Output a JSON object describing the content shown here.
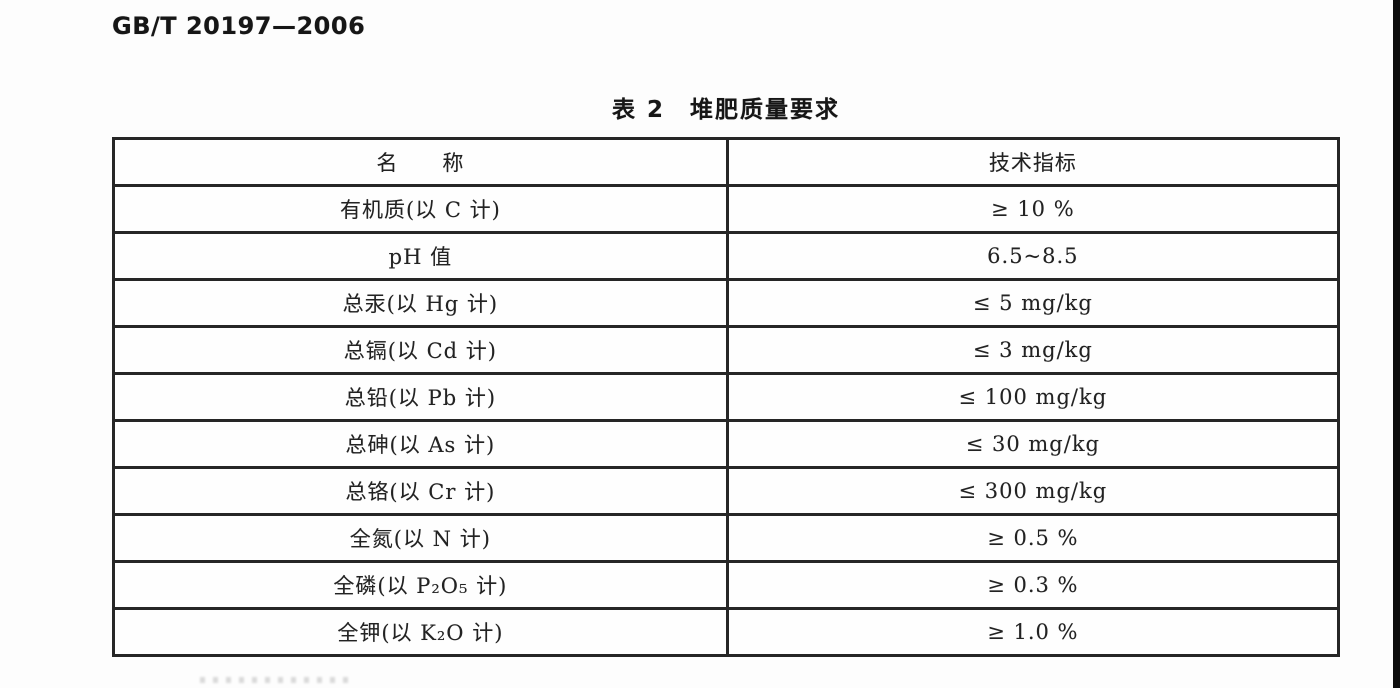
{
  "page": {
    "doc_number": "GB/T 20197—2006",
    "table_caption": "表 2　堆肥质量要求"
  },
  "table": {
    "headers": {
      "name": "名　　称",
      "index": "技术指标"
    },
    "rows": [
      {
        "name": "有机质(以 C 计)",
        "value": "≥ 10 %"
      },
      {
        "name": "pH 值",
        "value": "6.5~8.5"
      },
      {
        "name": "总汞(以 Hg 计)",
        "value": "≤ 5 mg/kg"
      },
      {
        "name": "总镉(以 Cd 计)",
        "value": "≤ 3 mg/kg"
      },
      {
        "name": "总铅(以 Pb 计)",
        "value": "≤ 100 mg/kg"
      },
      {
        "name": "总砷(以 As 计)",
        "value": "≤ 30 mg/kg"
      },
      {
        "name": "总铬(以 Cr 计)",
        "value": "≤ 300 mg/kg"
      },
      {
        "name": "全氮(以 N 计)",
        "value": "≥ 0.5 %"
      },
      {
        "name": "全磷(以 P₂O₅ 计)",
        "value": "≥ 0.3 %"
      },
      {
        "name": "全钾(以 K₂O 计)",
        "value": "≥ 1.0 %"
      }
    ]
  }
}
